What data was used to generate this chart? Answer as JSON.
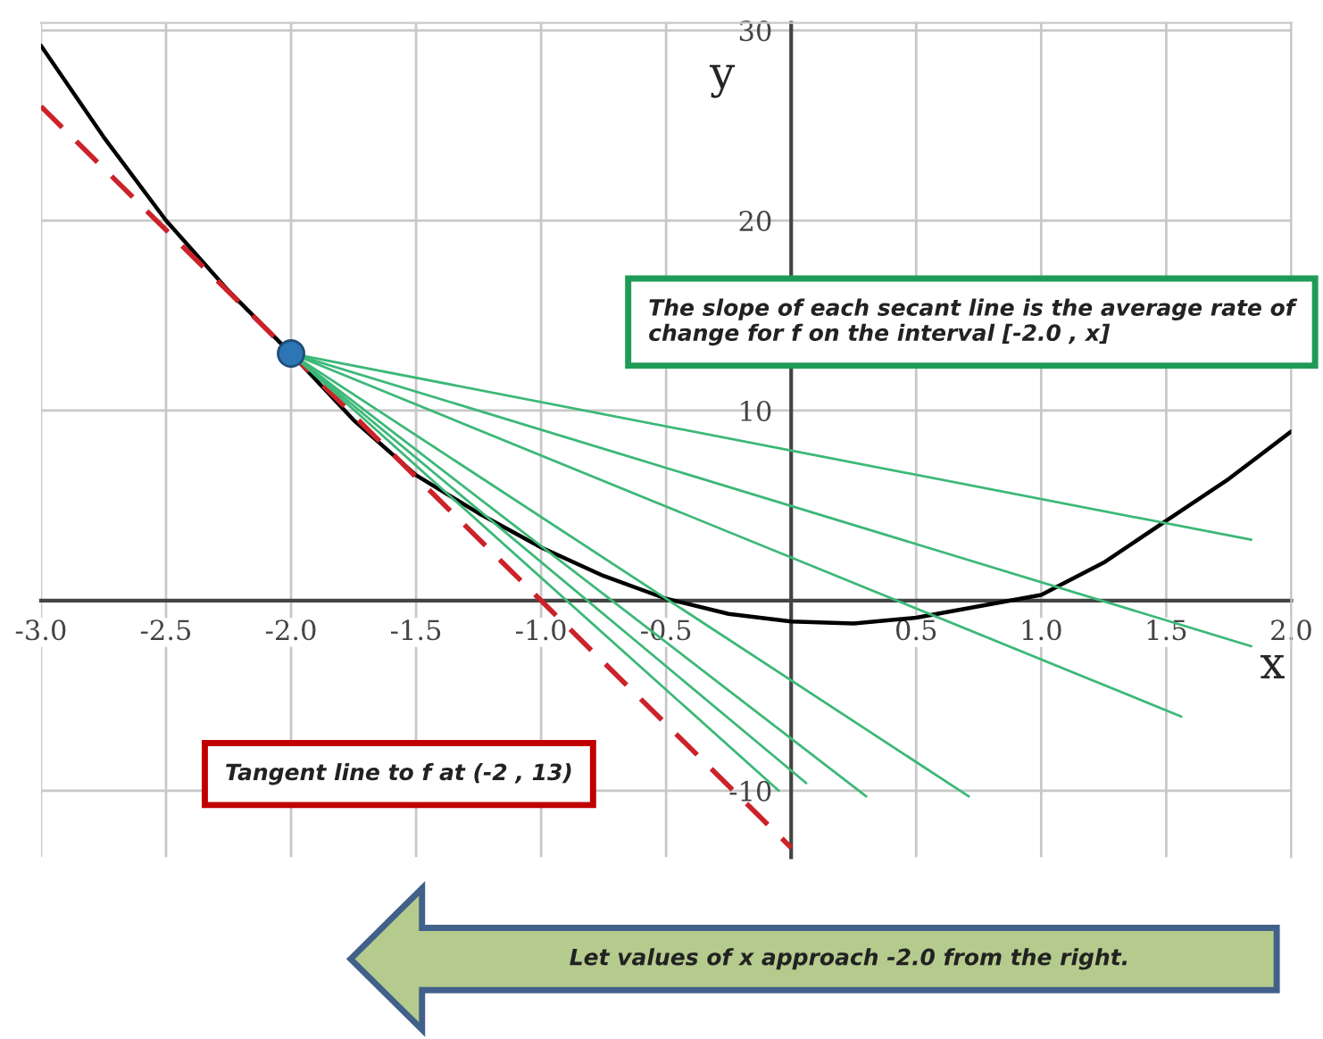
{
  "chart_data": {
    "type": "line",
    "xlabel": "x",
    "ylabel": "y",
    "xlim": [
      -3,
      2
    ],
    "ylim": [
      -13.5,
      30.4
    ],
    "xticks": [
      {
        "value": -3,
        "label": "-3.0"
      },
      {
        "value": -2.5,
        "label": "-2.5"
      },
      {
        "value": -2,
        "label": "-2.0"
      },
      {
        "value": -1.5,
        "label": "-1.5"
      },
      {
        "value": -1,
        "label": "-1.0"
      },
      {
        "value": -0.5,
        "label": "-0.5"
      },
      {
        "value": 0.5,
        "label": "0.5"
      },
      {
        "value": 1,
        "label": "1.0"
      },
      {
        "value": 1.5,
        "label": "1.5"
      },
      {
        "value": 2,
        "label": "2.0"
      }
    ],
    "yticks": [
      -10,
      10,
      20,
      30
    ],
    "grid": true,
    "legend": false,
    "series": [
      {
        "color": "#000000",
        "x": [
          -3,
          -2.75,
          -2.5,
          -2.25,
          -2,
          -1.75,
          -1.5,
          -1.25,
          -1,
          -0.75,
          -0.5,
          -0.25,
          0,
          0.25,
          0.5,
          0.75,
          1,
          1.25,
          1.5,
          1.75,
          2
        ],
        "values": [
          29.2,
          24.4,
          20,
          16.3,
          13,
          9.5,
          6.6,
          4.6,
          2.8,
          1.3,
          0.1,
          -0.7,
          -1.1,
          -1.2,
          -0.9,
          -0.3,
          0.3,
          2,
          4.2,
          6.4,
          8.9
        ]
      },
      {
        "color": "#cc2229",
        "line_style": "dashed",
        "x": [
          -3,
          0
        ],
        "values": [
          26,
          -13
        ]
      },
      {
        "type": "line",
        "color": "#3cb878",
        "x": [
          -2,
          1.84
        ],
        "values": [
          13,
          3.2
        ]
      },
      {
        "type": "line",
        "color": "#3cb878",
        "x": [
          -2,
          1.84
        ],
        "values": [
          13,
          -2.4
        ]
      },
      {
        "type": "line",
        "color": "#3cb878",
        "x": [
          -2,
          1.56
        ],
        "values": [
          13,
          -6.1
        ]
      },
      {
        "type": "line",
        "color": "#3cb878",
        "x": [
          -2,
          0.71
        ],
        "values": [
          13,
          -10.3
        ]
      },
      {
        "type": "line",
        "color": "#3cb878",
        "x": [
          -2,
          0.3
        ],
        "values": [
          13,
          -10.3
        ]
      },
      {
        "type": "line",
        "color": "#3cb878",
        "x": [
          -2,
          0.06
        ],
        "values": [
          13,
          -9.6
        ]
      },
      {
        "type": "line",
        "color": "#3cb878",
        "x": [
          -2,
          -0.05
        ],
        "values": [
          13,
          -10
        ]
      },
      {
        "type": "scatter",
        "color": "#2e75b6",
        "marker": "circle",
        "x": [
          -2
        ],
        "values": [
          13
        ]
      }
    ],
    "annotations": [
      "The slope of each secant line is the average rate of change for f on the interval [-2.0 , x]",
      "Tangent line to f at (-2 , 13)",
      "Let values of x approach -2.0 from the right."
    ]
  }
}
